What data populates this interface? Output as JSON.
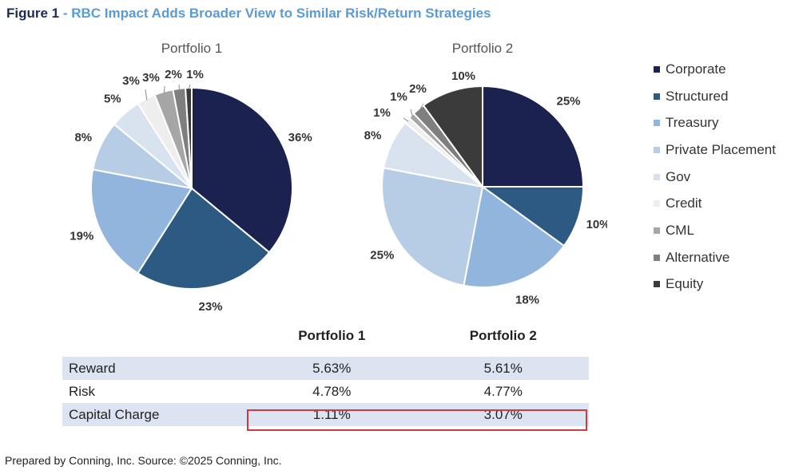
{
  "figure": {
    "lead": "Figure 1",
    "separator": " - ",
    "title": "RBC Impact Adds Broader View to Similar Risk/Return Strategies"
  },
  "colors": {
    "Corporate": "#1b2250",
    "Structured": "#2d5a83",
    "Treasury": "#91b5dc",
    "Private Placement": "#b7cde6",
    "Gov": "#d9e3f0",
    "Credit": "#eeeeee",
    "CML": "#a6a6a6",
    "Alternative": "#7f7f7f",
    "Equity": "#3b3b3b"
  },
  "chart_data": [
    {
      "type": "pie",
      "title": "Portfolio 1",
      "categories": [
        "Corporate",
        "Structured",
        "Treasury",
        "Private Placement",
        "Gov",
        "Credit",
        "CML",
        "Alternative",
        "Equity"
      ],
      "values": [
        36,
        23,
        19,
        8,
        5,
        3,
        3,
        2,
        1
      ],
      "labels": [
        "36%",
        "23%",
        "19%",
        "8%",
        "5%",
        "3%",
        "3%",
        "2%",
        "1%"
      ],
      "legend": "right"
    },
    {
      "type": "pie",
      "title": "Portfolio 2",
      "categories": [
        "Corporate",
        "Structured",
        "Treasury",
        "Private Placement",
        "Gov",
        "Credit",
        "CML",
        "Alternative",
        "Equity"
      ],
      "values": [
        25,
        10,
        18,
        25,
        8,
        1,
        1,
        2,
        10
      ],
      "labels": [
        "25%",
        "10%",
        "18%",
        "25%",
        "8%",
        "1%",
        "1%",
        "2%",
        "10%"
      ],
      "legend": "right"
    }
  ],
  "legend": {
    "items": [
      "Corporate",
      "Structured",
      "Treasury",
      "Private Placement",
      "Gov",
      "Credit",
      "CML",
      "Alternative",
      "Equity"
    ]
  },
  "table": {
    "headers": [
      "",
      "Portfolio 1",
      "Portfolio 2"
    ],
    "rows": [
      {
        "label": "Reward",
        "p1": "5.63%",
        "p2": "5.61%"
      },
      {
        "label": "Risk",
        "p1": "4.78%",
        "p2": "4.77%"
      },
      {
        "label": "Capital Charge",
        "p1": "1.11%",
        "p2": "3.07%"
      }
    ]
  },
  "footnote": "Prepared by Conning, Inc. Source: ©2025 Conning, Inc."
}
